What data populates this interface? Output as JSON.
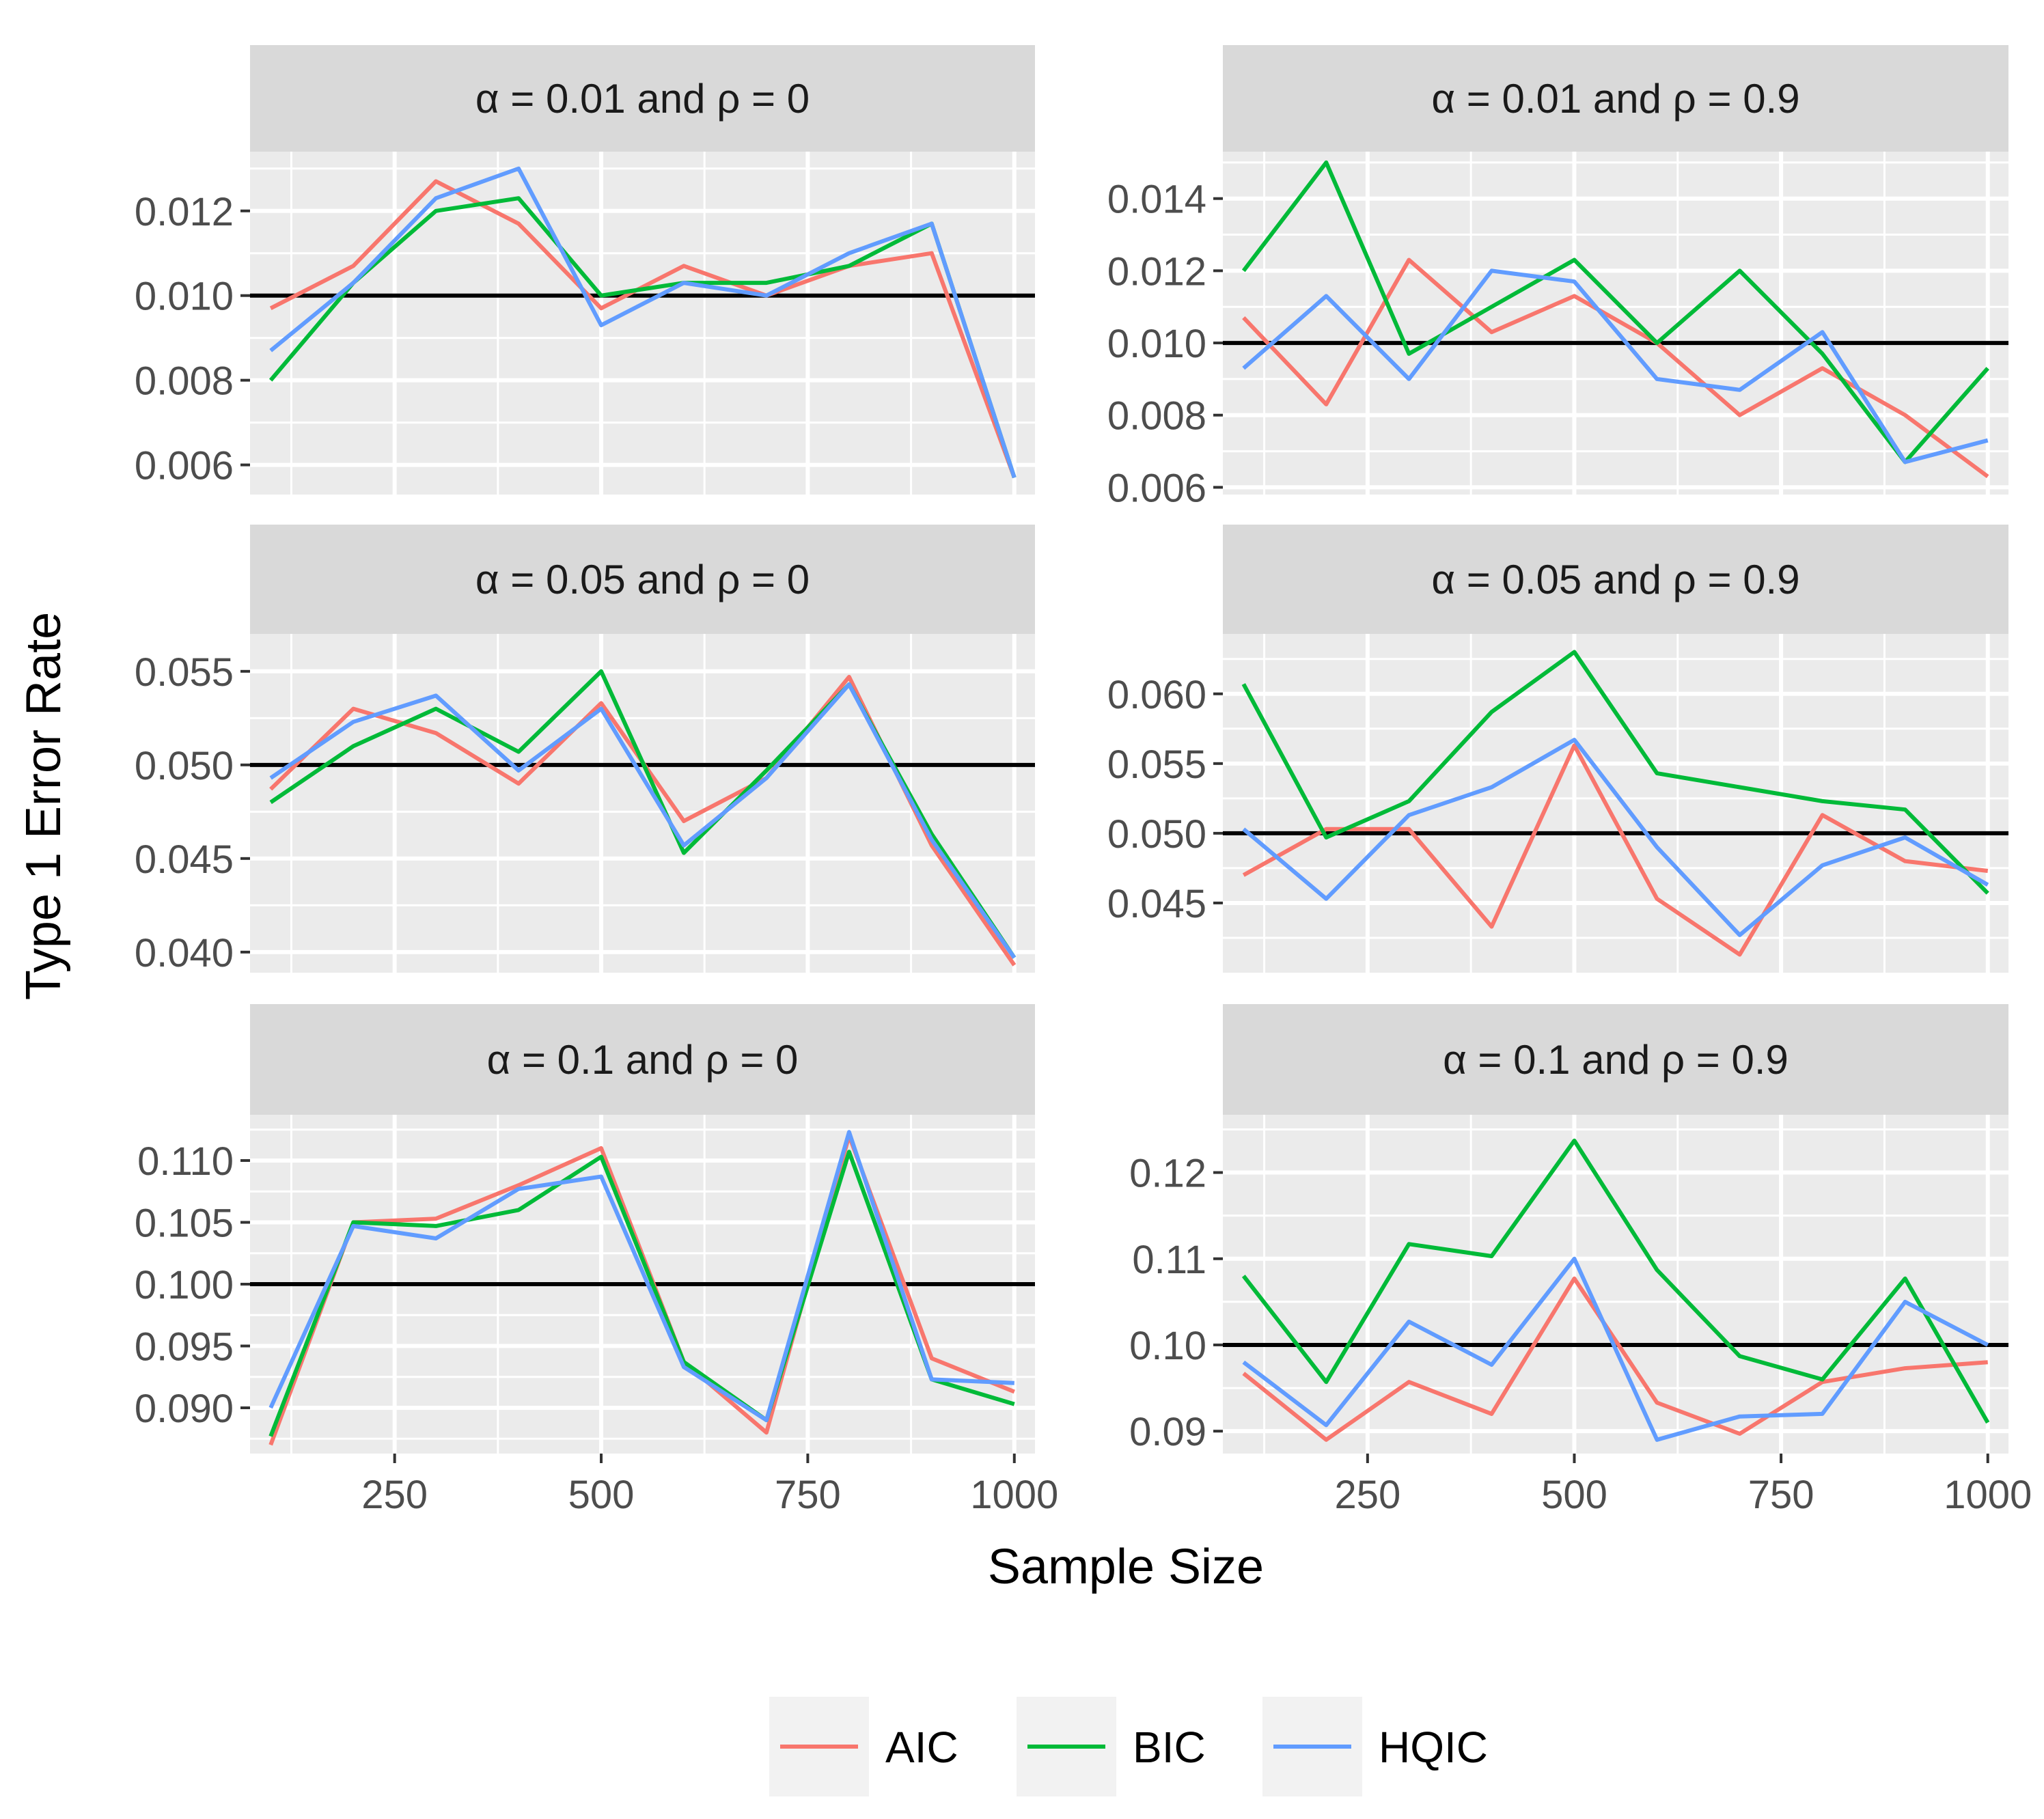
{
  "figure": {
    "xlabel": "Sample Size",
    "ylabel": "Type 1 Error Rate"
  },
  "legend": {
    "entries": [
      {
        "label": "AIC",
        "color": "#F8766D"
      },
      {
        "label": "BIC",
        "color": "#00BA38"
      },
      {
        "label": "HQIC",
        "color": "#619CFF"
      }
    ]
  },
  "chart_data": [
    {
      "type": "line",
      "title": "α = 0.01 and ρ = 0",
      "x": [
        100,
        200,
        300,
        400,
        500,
        600,
        700,
        800,
        900,
        1000
      ],
      "xlim": [
        75,
        1025
      ],
      "xticks": [
        250,
        500,
        750,
        1000
      ],
      "ylim": [
        0.0053,
        0.0134
      ],
      "yticks": [
        0.006,
        0.008,
        0.01,
        0.012
      ],
      "ytick_labels": [
        "0.006",
        "0.008",
        "0.010",
        "0.012"
      ],
      "reference_line": 0.01,
      "series": [
        {
          "name": "AIC",
          "values": [
            0.0097,
            0.0107,
            0.0127,
            0.0117,
            0.0097,
            0.0107,
            0.01,
            0.0107,
            0.011,
            0.0057
          ]
        },
        {
          "name": "BIC",
          "values": [
            0.008,
            0.0103,
            0.012,
            0.0123,
            0.01,
            0.0103,
            0.0103,
            0.0107,
            0.0117,
            0.0057
          ]
        },
        {
          "name": "HQIC",
          "values": [
            0.0087,
            0.0103,
            0.0123,
            0.013,
            0.0093,
            0.0103,
            0.01,
            0.011,
            0.0117,
            0.0057
          ]
        }
      ]
    },
    {
      "type": "line",
      "title": "α = 0.01 and ρ = 0.9",
      "x": [
        100,
        200,
        300,
        400,
        500,
        600,
        700,
        800,
        900,
        1000
      ],
      "xlim": [
        75,
        1025
      ],
      "xticks": [
        250,
        500,
        750,
        1000
      ],
      "ylim": [
        0.0058,
        0.0153
      ],
      "yticks": [
        0.006,
        0.008,
        0.01,
        0.012,
        0.014
      ],
      "ytick_labels": [
        "0.006",
        "0.008",
        "0.010",
        "0.012",
        "0.014"
      ],
      "reference_line": 0.01,
      "series": [
        {
          "name": "AIC",
          "values": [
            0.0107,
            0.0083,
            0.0123,
            0.0103,
            0.0113,
            0.01,
            0.008,
            0.0093,
            0.008,
            0.0063
          ]
        },
        {
          "name": "BIC",
          "values": [
            0.012,
            0.015,
            0.0097,
            0.011,
            0.0123,
            0.01,
            0.012,
            0.0097,
            0.0067,
            0.0093
          ]
        },
        {
          "name": "HQIC",
          "values": [
            0.0093,
            0.0113,
            0.009,
            0.012,
            0.0117,
            0.009,
            0.0087,
            0.0103,
            0.0067,
            0.0073
          ]
        }
      ]
    },
    {
      "type": "line",
      "title": "α = 0.05 and ρ = 0",
      "x": [
        100,
        200,
        300,
        400,
        500,
        600,
        700,
        800,
        900,
        1000
      ],
      "xlim": [
        75,
        1025
      ],
      "xticks": [
        250,
        500,
        750,
        1000
      ],
      "ylim": [
        0.0389,
        0.057
      ],
      "yticks": [
        0.04,
        0.045,
        0.05,
        0.055
      ],
      "ytick_labels": [
        "0.040",
        "0.045",
        "0.050",
        "0.055"
      ],
      "reference_line": 0.05,
      "series": [
        {
          "name": "AIC",
          "values": [
            0.0487,
            0.053,
            0.0517,
            0.049,
            0.0533,
            0.047,
            0.0493,
            0.0547,
            0.0457,
            0.0393
          ]
        },
        {
          "name": "BIC",
          "values": [
            0.048,
            0.051,
            0.053,
            0.0507,
            0.055,
            0.0453,
            0.0497,
            0.0543,
            0.0463,
            0.0397
          ]
        },
        {
          "name": "HQIC",
          "values": [
            0.0493,
            0.0523,
            0.0537,
            0.0497,
            0.053,
            0.0457,
            0.0493,
            0.0543,
            0.046,
            0.0397
          ]
        }
      ]
    },
    {
      "type": "line",
      "title": "α = 0.05 and ρ = 0.9",
      "x": [
        100,
        200,
        300,
        400,
        500,
        600,
        700,
        800,
        900,
        1000
      ],
      "xlim": [
        75,
        1025
      ],
      "xticks": [
        250,
        500,
        750,
        1000
      ],
      "ylim": [
        0.04,
        0.0643
      ],
      "yticks": [
        0.045,
        0.05,
        0.055,
        0.06
      ],
      "ytick_labels": [
        "0.045",
        "0.050",
        "0.055",
        "0.060"
      ],
      "reference_line": 0.05,
      "series": [
        {
          "name": "AIC",
          "values": [
            0.047,
            0.0503,
            0.0503,
            0.0433,
            0.0563,
            0.0453,
            0.0413,
            0.0513,
            0.048,
            0.0473
          ]
        },
        {
          "name": "BIC",
          "values": [
            0.0607,
            0.0497,
            0.0523,
            0.0587,
            0.063,
            0.0543,
            0.0533,
            0.0523,
            0.0517,
            0.0457
          ]
        },
        {
          "name": "HQIC",
          "values": [
            0.0503,
            0.0453,
            0.0513,
            0.0533,
            0.0567,
            0.049,
            0.0427,
            0.0477,
            0.0497,
            0.0463
          ]
        }
      ]
    },
    {
      "type": "line",
      "title": "α = 0.1 and ρ = 0",
      "x": [
        100,
        200,
        300,
        400,
        500,
        600,
        700,
        800,
        900,
        1000
      ],
      "xlim": [
        75,
        1025
      ],
      "xticks": [
        250,
        500,
        750,
        1000
      ],
      "ylim": [
        0.0863,
        0.1137
      ],
      "yticks": [
        0.09,
        0.095,
        0.1,
        0.105,
        0.11
      ],
      "ytick_labels": [
        "0.090",
        "0.095",
        "0.100",
        "0.105",
        "0.110"
      ],
      "reference_line": 0.1,
      "series": [
        {
          "name": "AIC",
          "values": [
            0.087,
            0.105,
            0.1053,
            0.108,
            0.111,
            0.0937,
            0.088,
            0.112,
            0.094,
            0.0913
          ]
        },
        {
          "name": "BIC",
          "values": [
            0.0877,
            0.105,
            0.1047,
            0.106,
            0.1103,
            0.0937,
            0.089,
            0.1107,
            0.0923,
            0.0903
          ]
        },
        {
          "name": "HQIC",
          "values": [
            0.09,
            0.1047,
            0.1037,
            0.1077,
            0.1087,
            0.0933,
            0.089,
            0.1123,
            0.0923,
            0.092
          ]
        }
      ]
    },
    {
      "type": "line",
      "title": "α = 0.1 and ρ = 0.9",
      "x": [
        100,
        200,
        300,
        400,
        500,
        600,
        700,
        800,
        900,
        1000
      ],
      "xlim": [
        75,
        1025
      ],
      "xticks": [
        250,
        500,
        750,
        1000
      ],
      "ylim": [
        0.0874,
        0.1267
      ],
      "yticks": [
        0.09,
        0.1,
        0.11,
        0.12
      ],
      "ytick_labels": [
        "0.09",
        "0.10",
        "0.11",
        "0.12"
      ],
      "reference_line": 0.1,
      "series": [
        {
          "name": "AIC",
          "values": [
            0.0967,
            0.089,
            0.0957,
            0.092,
            0.1077,
            0.0933,
            0.0897,
            0.0957,
            0.0973,
            0.098
          ]
        },
        {
          "name": "BIC",
          "values": [
            0.108,
            0.0957,
            0.1117,
            0.1103,
            0.1237,
            0.1087,
            0.0987,
            0.096,
            0.1077,
            0.091
          ]
        },
        {
          "name": "HQIC",
          "values": [
            0.098,
            0.0907,
            0.1027,
            0.0977,
            0.11,
            0.089,
            0.0917,
            0.092,
            0.105,
            0.1
          ]
        }
      ]
    }
  ]
}
